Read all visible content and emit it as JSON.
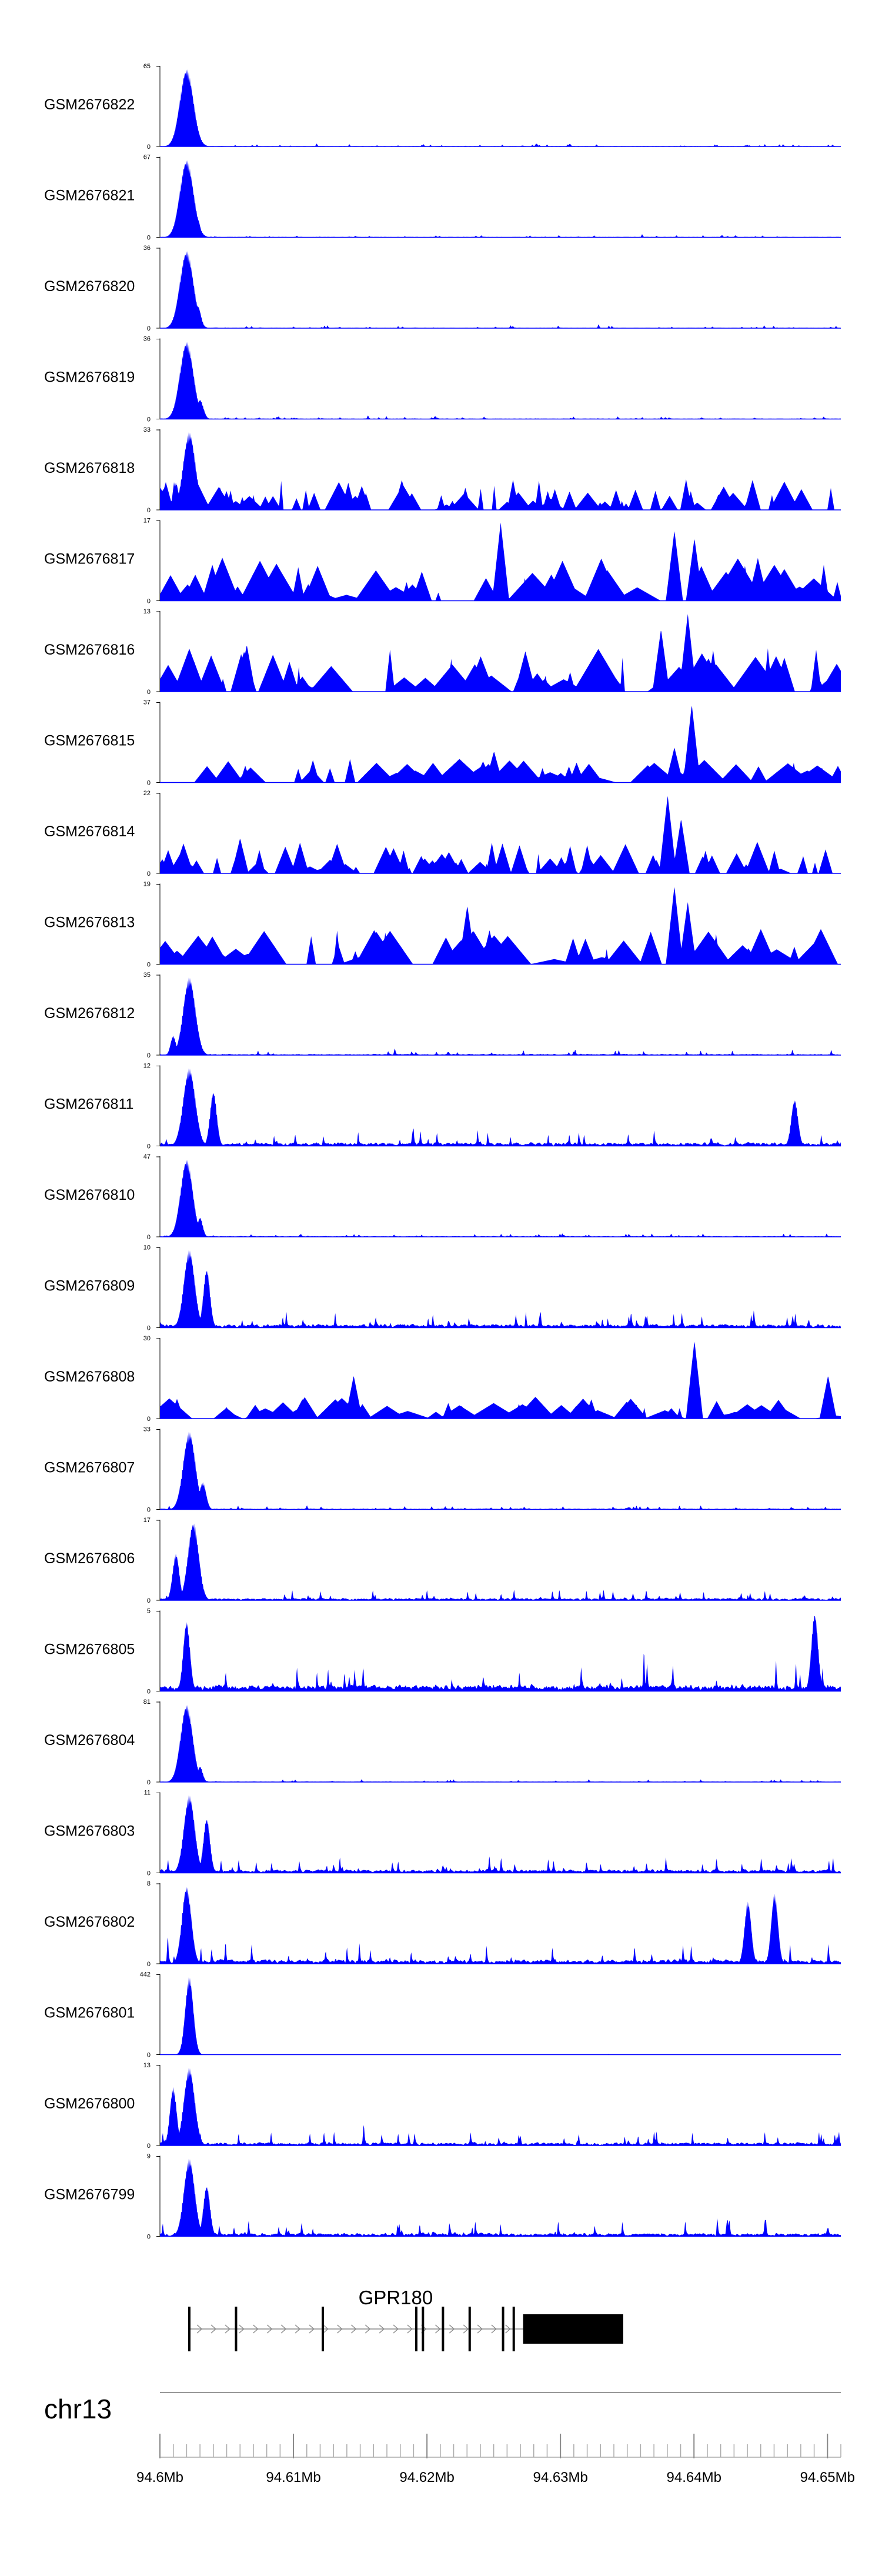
{
  "chart_data": {
    "type": "area",
    "color": "#0000ff",
    "tracks": [
      {
        "name": "GSM2676822",
        "ymax": "65",
        "ymin": "0",
        "peaks": [
          [
            94.602,
            1.0,
            0.001,
            "g"
          ],
          [
            94.6028,
            0.2,
            0.0004,
            "g"
          ]
        ],
        "noise": 0.07,
        "wide": 0
      },
      {
        "name": "GSM2676821",
        "ymax": "67",
        "ymin": "0",
        "peaks": [
          [
            94.602,
            1.0,
            0.001,
            "g"
          ],
          [
            94.6028,
            0.25,
            0.0004,
            "g"
          ]
        ],
        "noise": 0.07,
        "wide": 0
      },
      {
        "name": "GSM2676820",
        "ymax": "36",
        "ymin": "0",
        "peaks": [
          [
            94.602,
            1.0,
            0.001,
            "g"
          ],
          [
            94.6028,
            0.3,
            0.0005,
            "g"
          ]
        ],
        "noise": 0.08,
        "wide": 0
      },
      {
        "name": "GSM2676819",
        "ymax": "36",
        "ymin": "0",
        "peaks": [
          [
            94.602,
            1.0,
            0.001,
            "g"
          ],
          [
            94.603,
            0.25,
            0.0005,
            "g"
          ]
        ],
        "noise": 0.08,
        "wide": 0
      },
      {
        "name": "GSM2676818",
        "ymax": "33",
        "ymin": "0",
        "peaks": [
          [
            94.6022,
            1.0,
            0.0009,
            "g"
          ],
          [
            94.6012,
            0.35,
            0.0004,
            "g"
          ]
        ],
        "noise": 0.4,
        "wide": 1
      },
      {
        "name": "GSM2676817",
        "ymax": "17",
        "ymin": "0",
        "peaks": [
          [
            94.6255,
            1.0,
            0.0004,
            "t"
          ],
          [
            94.6385,
            0.9,
            0.0004,
            "t"
          ],
          [
            94.64,
            0.8,
            0.0004,
            "t"
          ]
        ],
        "noise": 0.55,
        "wide": 2
      },
      {
        "name": "GSM2676816",
        "ymax": "13",
        "ymin": "0",
        "peaks": [
          [
            94.6395,
            1.0,
            0.0004,
            "t"
          ],
          [
            94.6375,
            0.8,
            0.0004,
            "t"
          ],
          [
            94.6065,
            0.6,
            0.0004,
            "t"
          ]
        ],
        "noise": 0.55,
        "wide": 2
      },
      {
        "name": "GSM2676815",
        "ymax": "37",
        "ymin": "0",
        "peaks": [
          [
            94.6398,
            1.0,
            0.0004,
            "t"
          ],
          [
            94.625,
            0.4,
            0.0004,
            "t"
          ],
          [
            94.6385,
            0.45,
            0.0004,
            "t"
          ]
        ],
        "noise": 0.3,
        "wide": 2
      },
      {
        "name": "GSM2676814",
        "ymax": "22",
        "ymin": "0",
        "peaks": [
          [
            94.638,
            1.0,
            0.0004,
            "t"
          ],
          [
            94.639,
            0.7,
            0.0004,
            "t"
          ],
          [
            94.606,
            0.45,
            0.0004,
            "t"
          ]
        ],
        "noise": 0.4,
        "wide": 1
      },
      {
        "name": "GSM2676813",
        "ymax": "19",
        "ymin": "0",
        "peaks": [
          [
            94.6385,
            1.0,
            0.0004,
            "t"
          ],
          [
            94.623,
            0.75,
            0.0004,
            "t"
          ],
          [
            94.6395,
            0.8,
            0.0004,
            "t"
          ]
        ],
        "noise": 0.45,
        "wide": 2
      },
      {
        "name": "GSM2676812",
        "ymax": "35",
        "ymin": "0",
        "peaks": [
          [
            94.6022,
            1.0,
            0.0009,
            "g"
          ],
          [
            94.601,
            0.25,
            0.0004,
            "g"
          ]
        ],
        "noise": 0.15,
        "wide": 0
      },
      {
        "name": "GSM2676811",
        "ymax": "12",
        "ymin": "0",
        "peaks": [
          [
            94.6022,
            1.0,
            0.0009,
            "g"
          ],
          [
            94.604,
            0.7,
            0.0005,
            "g"
          ],
          [
            94.6475,
            0.6,
            0.0005,
            "g"
          ]
        ],
        "noise": 0.45,
        "wide": 0
      },
      {
        "name": "GSM2676810",
        "ymax": "47",
        "ymin": "0",
        "peaks": [
          [
            94.602,
            1.0,
            0.0009,
            "g"
          ],
          [
            94.603,
            0.25,
            0.0004,
            "g"
          ]
        ],
        "noise": 0.1,
        "wide": 0
      },
      {
        "name": "GSM2676809",
        "ymax": "10",
        "ymin": "0",
        "peaks": [
          [
            94.6022,
            1.0,
            0.0008,
            "g"
          ],
          [
            94.6035,
            0.75,
            0.0005,
            "g"
          ]
        ],
        "noise": 0.45,
        "wide": 0
      },
      {
        "name": "GSM2676808",
        "ymax": "30",
        "ymin": "0",
        "peaks": [
          [
            94.64,
            1.0,
            0.0004,
            "t"
          ],
          [
            94.6145,
            0.55,
            0.0004,
            "t"
          ],
          [
            94.65,
            0.55,
            0.0004,
            "t"
          ]
        ],
        "noise": 0.3,
        "wide": 2
      },
      {
        "name": "GSM2676807",
        "ymax": "33",
        "ymin": "0",
        "peaks": [
          [
            94.6022,
            1.0,
            0.0009,
            "g"
          ],
          [
            94.6032,
            0.35,
            0.0005,
            "g"
          ]
        ],
        "noise": 0.12,
        "wide": 0
      },
      {
        "name": "GSM2676806",
        "ymax": "17",
        "ymin": "0",
        "peaks": [
          [
            94.6025,
            1.0,
            0.0008,
            "g"
          ],
          [
            94.6012,
            0.6,
            0.0005,
            "g"
          ]
        ],
        "noise": 0.3,
        "wide": 0
      },
      {
        "name": "GSM2676805",
        "ymax": "5",
        "ymin": "0",
        "peaks": [
          [
            94.649,
            1.0,
            0.0005,
            "g"
          ],
          [
            94.602,
            0.9,
            0.0005,
            "g"
          ]
        ],
        "noise": 0.85,
        "wide": 0
      },
      {
        "name": "GSM2676804",
        "ymax": "81",
        "ymin": "0",
        "peaks": [
          [
            94.602,
            1.0,
            0.0009,
            "g"
          ],
          [
            94.603,
            0.2,
            0.0004,
            "g"
          ]
        ],
        "noise": 0.08,
        "wide": 0
      },
      {
        "name": "GSM2676803",
        "ymax": "11",
        "ymin": "0",
        "peaks": [
          [
            94.6022,
            1.0,
            0.0008,
            "g"
          ],
          [
            94.6035,
            0.7,
            0.0005,
            "g"
          ]
        ],
        "noise": 0.45,
        "wide": 0
      },
      {
        "name": "GSM2676802",
        "ymax": "8",
        "ymin": "0",
        "peaks": [
          [
            94.602,
            1.0,
            0.0007,
            "g"
          ],
          [
            94.646,
            0.9,
            0.0005,
            "g"
          ],
          [
            94.644,
            0.8,
            0.0005,
            "g"
          ]
        ],
        "noise": 0.55,
        "wide": 0
      },
      {
        "name": "GSM2676801",
        "ymax": "442",
        "ymin": "0",
        "peaks": [
          [
            94.6022,
            1.0,
            0.0006,
            "g"
          ]
        ],
        "noise": 0.01,
        "wide": 0
      },
      {
        "name": "GSM2676800",
        "ymax": "13",
        "ymin": "0",
        "peaks": [
          [
            94.6022,
            1.0,
            0.0008,
            "g"
          ],
          [
            94.601,
            0.75,
            0.0005,
            "g"
          ]
        ],
        "noise": 0.4,
        "wide": 0
      },
      {
        "name": "GSM2676799",
        "ymax": "9",
        "ymin": "0",
        "peaks": [
          [
            94.6022,
            1.0,
            0.0008,
            "g"
          ],
          [
            94.6035,
            0.65,
            0.0005,
            "g"
          ]
        ],
        "noise": 0.45,
        "wide": 0
      }
    ],
    "gene": {
      "name": "GPR180",
      "start": 94.6022,
      "cds_start": 94.6272,
      "end": 94.6347,
      "exons": [
        94.6022,
        94.6057,
        94.6122,
        94.6192,
        94.6197,
        94.6212,
        94.6232,
        94.6257,
        94.6265
      ]
    },
    "chromosome": "chr13",
    "x_range": [
      94.6,
      94.651
    ],
    "x_ticks": [
      {
        "v": 94.6,
        "label": "94.6Mb"
      },
      {
        "v": 94.61,
        "label": "94.61Mb"
      },
      {
        "v": 94.62,
        "label": "94.62Mb"
      },
      {
        "v": 94.63,
        "label": "94.63Mb"
      },
      {
        "v": 94.64,
        "label": "94.64Mb"
      },
      {
        "v": 94.65,
        "label": "94.65Mb"
      }
    ],
    "minor_tick_step": 0.001
  }
}
